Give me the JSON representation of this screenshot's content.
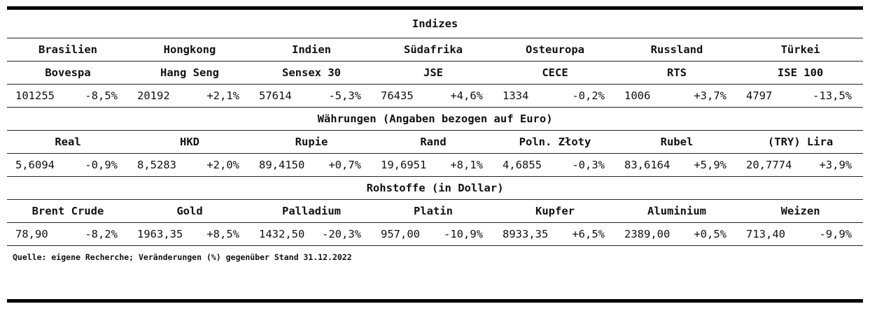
{
  "title_indices": "Indizes",
  "countries": [
    "Brasilien",
    "Hongkong",
    "Indien",
    "Südafrika",
    "Osteuropa",
    "Russland",
    "Türkei"
  ],
  "indices": [
    "Bovespa",
    "Hang Seng",
    "Sensex 30",
    "JSE",
    "CECE",
    "RTS",
    "ISE 100"
  ],
  "index_values": [
    {
      "value": "101255",
      "change": "-8,5%"
    },
    {
      "value": "20192",
      "change": "+2,1%"
    },
    {
      "value": "57614",
      "change": "-5,3%"
    },
    {
      "value": "76435",
      "change": "+4,6%"
    },
    {
      "value": "1334",
      "change": "-0,2%"
    },
    {
      "value": "1006",
      "change": "+3,7%"
    },
    {
      "value": "4797",
      "change": "-13,5%"
    }
  ],
  "title_currencies": "Währungen (Angaben bezogen auf Euro)",
  "currencies": [
    "Real",
    "HKD",
    "Rupie",
    "Rand",
    "Poln. Złoty",
    "Rubel",
    "(TRY) Lira"
  ],
  "currency_values": [
    {
      "value": "5,6094",
      "change": "-0,9%"
    },
    {
      "value": "8,5283",
      "change": "+2,0%"
    },
    {
      "value": "89,4150",
      "change": "+0,7%"
    },
    {
      "value": "19,6951",
      "change": "+8,1%"
    },
    {
      "value": "4,6855",
      "change": "-0,3%"
    },
    {
      "value": "83,6164",
      "change": "+5,9%"
    },
    {
      "value": "20,7774",
      "change": "+3,9%"
    }
  ],
  "title_commodities": "Rohstoffe (in Dollar)",
  "commodities": [
    "Brent Crude",
    "Gold",
    "Palladium",
    "Platin",
    "Kupfer",
    "Aluminium",
    "Weizen"
  ],
  "commodity_values": [
    {
      "value": "78,90",
      "change": "-8,2%"
    },
    {
      "value": "1963,35",
      "change": "+8,5%"
    },
    {
      "value": "1432,50",
      "change": "-20,3%"
    },
    {
      "value": "957,00",
      "change": "-10,9%"
    },
    {
      "value": "8933,35",
      "change": "+6,5%"
    },
    {
      "value": "2389,00",
      "change": "+0,5%"
    },
    {
      "value": "713,40",
      "change": "-9,9%"
    }
  ],
  "note": "Quelle: eigene Recherche; Veränderungen (%) gegenüber Stand 31.12.2022"
}
